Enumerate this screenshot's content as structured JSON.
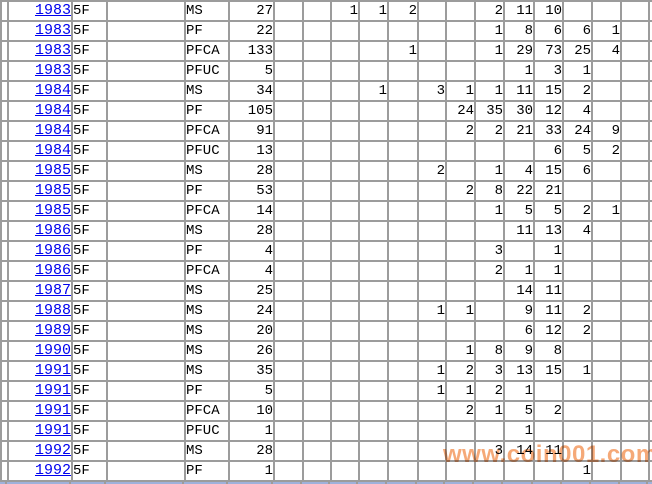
{
  "colors": {
    "link": "#0000EE",
    "grid": "#9C9C9C",
    "watermark": "#F49A60",
    "strip": "#9FB1DB"
  },
  "watermark": {
    "text": "www.coin001.com"
  },
  "table": {
    "rows": [
      {
        "year": "1983",
        "grade": "5F",
        "type": "MS",
        "total": "27",
        "d": [
          "",
          "",
          "1",
          "1",
          "2",
          "",
          "",
          "2",
          "11",
          "10",
          "",
          "",
          ""
        ]
      },
      {
        "year": "1983",
        "grade": "5F",
        "type": "PF",
        "total": "22",
        "d": [
          "",
          "",
          "",
          "",
          "",
          "",
          "",
          "1",
          "8",
          "6",
          "6",
          "1",
          ""
        ]
      },
      {
        "year": "1983",
        "grade": "5F",
        "type": "PFCA",
        "total": "133",
        "d": [
          "",
          "",
          "",
          "",
          "1",
          "",
          "",
          "1",
          "29",
          "73",
          "25",
          "4",
          ""
        ]
      },
      {
        "year": "1983",
        "grade": "5F",
        "type": "PFUC",
        "total": "5",
        "d": [
          "",
          "",
          "",
          "",
          "",
          "",
          "",
          "",
          "1",
          "3",
          "1",
          "",
          ""
        ]
      },
      {
        "year": "1984",
        "grade": "5F",
        "type": "MS",
        "total": "34",
        "d": [
          "",
          "",
          "",
          "1",
          "",
          "3",
          "1",
          "1",
          "11",
          "15",
          "2",
          "",
          ""
        ]
      },
      {
        "year": "1984",
        "grade": "5F",
        "type": "PF",
        "total": "105",
        "d": [
          "",
          "",
          "",
          "",
          "",
          "",
          "24",
          "35",
          "30",
          "12",
          "4",
          "",
          ""
        ]
      },
      {
        "year": "1984",
        "grade": "5F",
        "type": "PFCA",
        "total": "91",
        "d": [
          "",
          "",
          "",
          "",
          "",
          "",
          "2",
          "2",
          "21",
          "33",
          "24",
          "9",
          ""
        ]
      },
      {
        "year": "1984",
        "grade": "5F",
        "type": "PFUC",
        "total": "13",
        "d": [
          "",
          "",
          "",
          "",
          "",
          "",
          "",
          "",
          "",
          "6",
          "5",
          "2",
          ""
        ]
      },
      {
        "year": "1985",
        "grade": "5F",
        "type": "MS",
        "total": "28",
        "d": [
          "",
          "",
          "",
          "",
          "",
          "2",
          "",
          "1",
          "4",
          "15",
          "6",
          "",
          ""
        ]
      },
      {
        "year": "1985",
        "grade": "5F",
        "type": "PF",
        "total": "53",
        "d": [
          "",
          "",
          "",
          "",
          "",
          "",
          "2",
          "8",
          "22",
          "21",
          "",
          "",
          ""
        ]
      },
      {
        "year": "1985",
        "grade": "5F",
        "type": "PFCA",
        "total": "14",
        "d": [
          "",
          "",
          "",
          "",
          "",
          "",
          "",
          "1",
          "5",
          "5",
          "2",
          "1",
          ""
        ]
      },
      {
        "year": "1986",
        "grade": "5F",
        "type": "MS",
        "total": "28",
        "d": [
          "",
          "",
          "",
          "",
          "",
          "",
          "",
          "",
          "11",
          "13",
          "4",
          "",
          ""
        ]
      },
      {
        "year": "1986",
        "grade": "5F",
        "type": "PF",
        "total": "4",
        "d": [
          "",
          "",
          "",
          "",
          "",
          "",
          "",
          "3",
          "",
          "1",
          "",
          "",
          ""
        ]
      },
      {
        "year": "1986",
        "grade": "5F",
        "type": "PFCA",
        "total": "4",
        "d": [
          "",
          "",
          "",
          "",
          "",
          "",
          "",
          "2",
          "1",
          "1",
          "",
          "",
          ""
        ]
      },
      {
        "year": "1987",
        "grade": "5F",
        "type": "MS",
        "total": "25",
        "d": [
          "",
          "",
          "",
          "",
          "",
          "",
          "",
          "",
          "14",
          "11",
          "",
          "",
          ""
        ]
      },
      {
        "year": "1988",
        "grade": "5F",
        "type": "MS",
        "total": "24",
        "d": [
          "",
          "",
          "",
          "",
          "",
          "1",
          "1",
          "",
          "9",
          "11",
          "2",
          "",
          ""
        ]
      },
      {
        "year": "1989",
        "grade": "5F",
        "type": "MS",
        "total": "20",
        "d": [
          "",
          "",
          "",
          "",
          "",
          "",
          "",
          "",
          "6",
          "12",
          "2",
          "",
          ""
        ]
      },
      {
        "year": "1990",
        "grade": "5F",
        "type": "MS",
        "total": "26",
        "d": [
          "",
          "",
          "",
          "",
          "",
          "",
          "1",
          "8",
          "9",
          "8",
          "",
          "",
          ""
        ]
      },
      {
        "year": "1991",
        "grade": "5F",
        "type": "MS",
        "total": "35",
        "d": [
          "",
          "",
          "",
          "",
          "",
          "1",
          "2",
          "3",
          "13",
          "15",
          "1",
          "",
          ""
        ]
      },
      {
        "year": "1991",
        "grade": "5F",
        "type": "PF",
        "total": "5",
        "d": [
          "",
          "",
          "",
          "",
          "",
          "1",
          "1",
          "2",
          "1",
          "",
          "",
          "",
          ""
        ]
      },
      {
        "year": "1991",
        "grade": "5F",
        "type": "PFCA",
        "total": "10",
        "d": [
          "",
          "",
          "",
          "",
          "",
          "",
          "2",
          "1",
          "5",
          "2",
          "",
          "",
          ""
        ]
      },
      {
        "year": "1991",
        "grade": "5F",
        "type": "PFUC",
        "total": "1",
        "d": [
          "",
          "",
          "",
          "",
          "",
          "",
          "",
          "",
          "1",
          "",
          "",
          "",
          ""
        ]
      },
      {
        "year": "1992",
        "grade": "5F",
        "type": "MS",
        "total": "28",
        "d": [
          "",
          "",
          "",
          "",
          "",
          "",
          "",
          "3",
          "14",
          "11",
          "",
          "",
          ""
        ]
      },
      {
        "year": "1992",
        "grade": "5F",
        "type": "PF",
        "total": "1",
        "d": [
          "",
          "",
          "",
          "",
          "",
          "",
          "",
          "",
          "",
          "",
          "1",
          "",
          ""
        ]
      }
    ]
  }
}
